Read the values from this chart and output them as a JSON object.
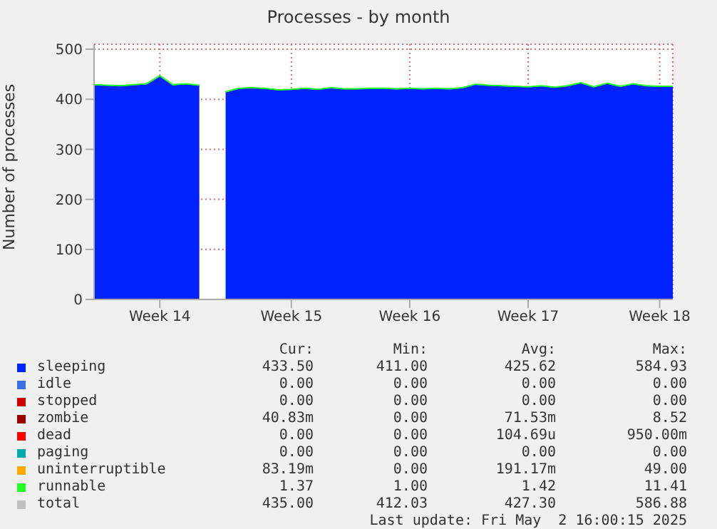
{
  "chart_data": {
    "type": "area",
    "stacked": true,
    "title": "Processes - by month",
    "ylabel": "Number of processes",
    "categories": [
      null,
      null,
      null,
      null,
      null,
      "Week 14",
      null,
      null,
      null,
      null,
      null,
      null,
      null,
      null,
      null,
      "Week 15",
      null,
      null,
      null,
      null,
      null,
      null,
      null,
      null,
      "Week 16",
      null,
      null,
      null,
      null,
      null,
      null,
      null,
      null,
      "Week 17",
      null,
      null,
      null,
      null,
      null,
      null,
      null,
      null,
      null,
      "Week 18",
      null
    ],
    "ylim": [
      0,
      510
    ],
    "yticks": [
      0,
      100,
      200,
      300,
      400,
      500
    ],
    "grid": true,
    "legend": "bottom",
    "series": [
      {
        "name": "sleeping",
        "color": "#0022ff",
        "values": [
          428,
          427,
          426,
          428,
          430,
          446,
          428,
          430,
          427,
          null,
          414,
          421,
          422,
          421,
          418,
          419,
          421,
          419,
          422,
          420,
          420,
          421,
          421,
          420,
          421,
          420,
          421,
          420,
          422,
          429,
          427,
          426,
          425,
          424,
          426,
          423,
          426,
          432,
          424,
          431,
          425,
          430,
          426,
          425,
          425
        ]
      },
      {
        "name": "idle",
        "color": "#3d6ee6",
        "values": [
          null,
          null,
          null,
          null,
          null,
          null,
          null,
          null,
          null,
          null,
          null,
          null,
          null,
          null,
          null,
          null,
          null,
          null,
          null,
          null,
          null,
          null,
          null,
          null,
          null,
          null,
          null,
          null,
          null,
          null,
          null,
          null,
          null,
          null,
          null,
          null,
          null,
          null,
          null,
          null,
          null,
          null,
          null,
          null,
          null
        ]
      },
      {
        "name": "stopped",
        "color": "#cc0000",
        "values": [
          null,
          null,
          null,
          null,
          null,
          null,
          null,
          null,
          null,
          null,
          null,
          null,
          null,
          null,
          null,
          null,
          null,
          null,
          null,
          null,
          null,
          null,
          null,
          null,
          null,
          null,
          null,
          null,
          null,
          null,
          null,
          null,
          null,
          null,
          null,
          null,
          null,
          null,
          null,
          null,
          null,
          null,
          null,
          null,
          null
        ]
      },
      {
        "name": "zombie",
        "color": "#990000",
        "values": [
          null,
          null,
          null,
          null,
          null,
          null,
          null,
          null,
          null,
          null,
          null,
          null,
          null,
          null,
          null,
          null,
          null,
          null,
          null,
          null,
          null,
          null,
          null,
          null,
          null,
          null,
          null,
          null,
          null,
          null,
          null,
          null,
          null,
          null,
          null,
          null,
          null,
          null,
          null,
          null,
          null,
          null,
          null,
          null,
          null
        ]
      },
      {
        "name": "dead",
        "color": "#ff0000",
        "values": [
          null,
          null,
          null,
          null,
          null,
          null,
          null,
          null,
          null,
          null,
          null,
          null,
          null,
          null,
          null,
          null,
          null,
          null,
          null,
          null,
          null,
          null,
          null,
          null,
          null,
          null,
          null,
          null,
          null,
          null,
          null,
          null,
          null,
          null,
          null,
          null,
          null,
          null,
          null,
          null,
          null,
          null,
          null,
          null,
          null
        ]
      },
      {
        "name": "paging",
        "color": "#00aaaa",
        "values": [
          null,
          null,
          null,
          null,
          null,
          null,
          null,
          null,
          null,
          null,
          null,
          null,
          null,
          null,
          null,
          null,
          null,
          null,
          null,
          null,
          null,
          null,
          null,
          null,
          null,
          null,
          null,
          null,
          null,
          null,
          null,
          null,
          null,
          null,
          null,
          null,
          null,
          null,
          null,
          null,
          null,
          null,
          null,
          null,
          null
        ]
      },
      {
        "name": "uninterruptible",
        "color": "#ffaa00",
        "values": [
          null,
          null,
          null,
          null,
          null,
          null,
          null,
          null,
          null,
          null,
          null,
          null,
          null,
          null,
          null,
          null,
          null,
          null,
          null,
          null,
          null,
          null,
          null,
          null,
          null,
          null,
          null,
          null,
          null,
          null,
          null,
          null,
          null,
          null,
          null,
          null,
          null,
          null,
          null,
          null,
          null,
          null,
          null,
          null,
          null
        ]
      },
      {
        "name": "runnable",
        "color": "#22ff22",
        "values": [
          1,
          1,
          1,
          1,
          1,
          1,
          1,
          1,
          1,
          null,
          1,
          1,
          1,
          1,
          1,
          1,
          1,
          1,
          1,
          1,
          1,
          1,
          1,
          1,
          1,
          1,
          1,
          1,
          1,
          1,
          1,
          1,
          1,
          1,
          1,
          1,
          1,
          1,
          1,
          1,
          1,
          1,
          1,
          1,
          1
        ]
      },
      {
        "name": "total",
        "color": "#c0c0c0",
        "values": [
          null,
          null,
          null,
          null,
          null,
          null,
          null,
          null,
          null,
          null,
          null,
          null,
          null,
          null,
          null,
          null,
          null,
          null,
          null,
          null,
          null,
          null,
          null,
          null,
          null,
          null,
          null,
          null,
          null,
          null,
          null,
          null,
          null,
          null,
          null,
          null,
          null,
          null,
          null,
          null,
          null,
          null,
          null,
          null,
          null
        ]
      }
    ],
    "annotations": [
      "Cur:",
      "Min:",
      "Avg:",
      "Max:",
      "433.50",
      "411.00",
      "425.62",
      "584.93",
      "0.00",
      "0.00",
      "0.00",
      "0.00",
      "0.00",
      "0.00",
      "0.00",
      "0.00",
      "40.83m",
      "0.00",
      "71.53m",
      "8.52",
      "0.00",
      "0.00",
      "104.69u",
      "950.00m",
      "0.00",
      "0.00",
      "0.00",
      "0.00",
      "83.19m",
      "0.00",
      "191.17m",
      "49.00",
      "1.37",
      "1.00",
      "1.42",
      "11.41",
      "435.00",
      "412.03",
      "427.30",
      "586.88",
      "Last update: Fri May  2 16:00:15 2025"
    ]
  }
}
